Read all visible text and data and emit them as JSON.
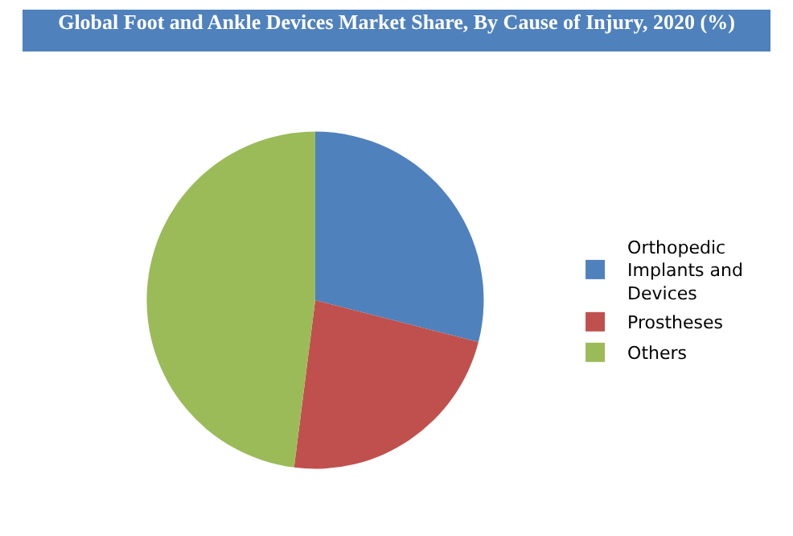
{
  "chart_data": {
    "type": "pie",
    "title": "Global Foot and Ankle Devices Market Share, By Cause of Injury, 2020 (%)",
    "categories": [
      "Orthopedic Implants and Devices",
      "Prostheses",
      "Others"
    ],
    "values": [
      29,
      23,
      48
    ],
    "colors": [
      "#4f81bd",
      "#c0504d",
      "#9bbb59"
    ],
    "legend": "right"
  }
}
